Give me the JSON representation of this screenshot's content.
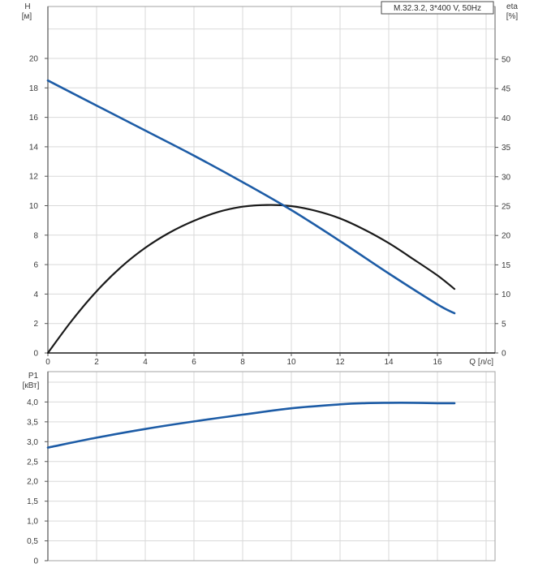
{
  "title_box": {
    "label": "M.32.3.2, 3*400 V, 50Hz"
  },
  "main_chart": {
    "left_axis": {
      "title": "H",
      "unit": "[м]",
      "tick_values": [
        0,
        2,
        4,
        6,
        8,
        10,
        12,
        14,
        16,
        18,
        20
      ],
      "tick_labels": [
        "0",
        "2",
        "4",
        "6",
        "8",
        "10",
        "12",
        "14",
        "16",
        "18",
        "20"
      ]
    },
    "right_axis": {
      "title": "eta",
      "unit": "[%]",
      "tick_values": [
        0,
        5,
        10,
        15,
        20,
        25,
        30,
        35,
        40,
        45,
        50
      ],
      "tick_labels": [
        "0",
        "5",
        "10",
        "15",
        "20",
        "25",
        "30",
        "35",
        "40",
        "45",
        "50"
      ]
    },
    "x_axis": {
      "title": "Q [л/с]",
      "tick_values": [
        0,
        2,
        4,
        6,
        8,
        10,
        12,
        14,
        16
      ],
      "tick_labels": [
        "0",
        "2",
        "4",
        "6",
        "8",
        "10",
        "12",
        "14",
        "16"
      ]
    }
  },
  "power_chart": {
    "left_axis": {
      "title": "P1",
      "unit": "[кВт]",
      "tick_values": [
        0,
        0.5,
        1,
        1.5,
        2,
        2.5,
        3,
        3.5,
        4
      ],
      "tick_labels": [
        "0",
        "0,5",
        "1,0",
        "1,5",
        "2,0",
        "2,5",
        "3,0",
        "3,5",
        "4,0"
      ]
    }
  },
  "chart_data": [
    {
      "type": "line",
      "title": "M.32.3.2, 3*400 V, 50Hz",
      "xlabel": "Q [л/с]",
      "ylabel": "H [м]",
      "y2label": "eta [%]",
      "xlim": [
        0,
        18.4
      ],
      "ylim": [
        0,
        23.5
      ],
      "y2lim": [
        0,
        58
      ],
      "grid": true,
      "series": [
        {
          "name": "head-curve H(Q)",
          "axis": "left",
          "color": "#1d5ca6",
          "x": [
            0,
            2,
            4,
            6,
            8,
            10,
            12,
            14,
            16,
            16.7
          ],
          "y": [
            18.5,
            16.8,
            15.1,
            13.4,
            11.6,
            9.7,
            7.6,
            5.4,
            3.3,
            2.7
          ]
        },
        {
          "name": "efficiency-curve eta(Q)",
          "axis": "right",
          "color": "#1a1a1a",
          "x": [
            0,
            1,
            2,
            3,
            4,
            5,
            6,
            7,
            8,
            9,
            10,
            11,
            12,
            13,
            14,
            15,
            16,
            16.7
          ],
          "y": [
            0,
            5.6,
            10.5,
            14.6,
            17.9,
            20.5,
            22.5,
            24.0,
            24.9,
            25.2,
            25.0,
            24.2,
            22.9,
            21.0,
            18.7,
            16.0,
            13.2,
            10.9
          ]
        }
      ]
    },
    {
      "type": "line",
      "ylabel": "P1 [кВт]",
      "xlim": [
        0,
        18.4
      ],
      "ylim": [
        0,
        4.8
      ],
      "grid": true,
      "series": [
        {
          "name": "power-curve P1(Q)",
          "color": "#1d5ca6",
          "x": [
            0,
            2,
            4,
            6,
            8,
            10,
            12,
            13,
            14,
            15,
            16,
            16.7
          ],
          "y": [
            2.85,
            3.1,
            3.32,
            3.51,
            3.68,
            3.84,
            3.94,
            3.97,
            3.98,
            3.98,
            3.97,
            3.97
          ]
        }
      ]
    }
  ],
  "colors": {
    "head_curve": "#1d5ca6",
    "eta_curve": "#1a1a1a",
    "power_curve": "#1d5ca6",
    "grid": "#d9d9d9",
    "frame": "#a3a3a3",
    "left_axis_line": "#6b6b6b",
    "right_axis_line": "#8f8f8f",
    "bottom_axis_line": "#1a1a1a",
    "tick": "#555555",
    "text": "#3a3a3a",
    "box_border": "#4a4a4a"
  }
}
